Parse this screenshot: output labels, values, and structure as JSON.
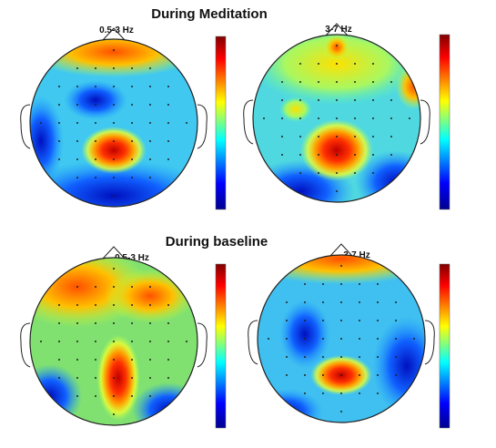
{
  "panels": [
    {
      "title": "During Meditation",
      "maps": [
        {
          "label": "0.5-3 Hz"
        },
        {
          "label": "3-7 Hz"
        }
      ]
    },
    {
      "title": "During baseline",
      "maps": [
        {
          "label": "0.5-3 Hz"
        },
        {
          "label": "3-7 Hz"
        }
      ]
    }
  ]
}
